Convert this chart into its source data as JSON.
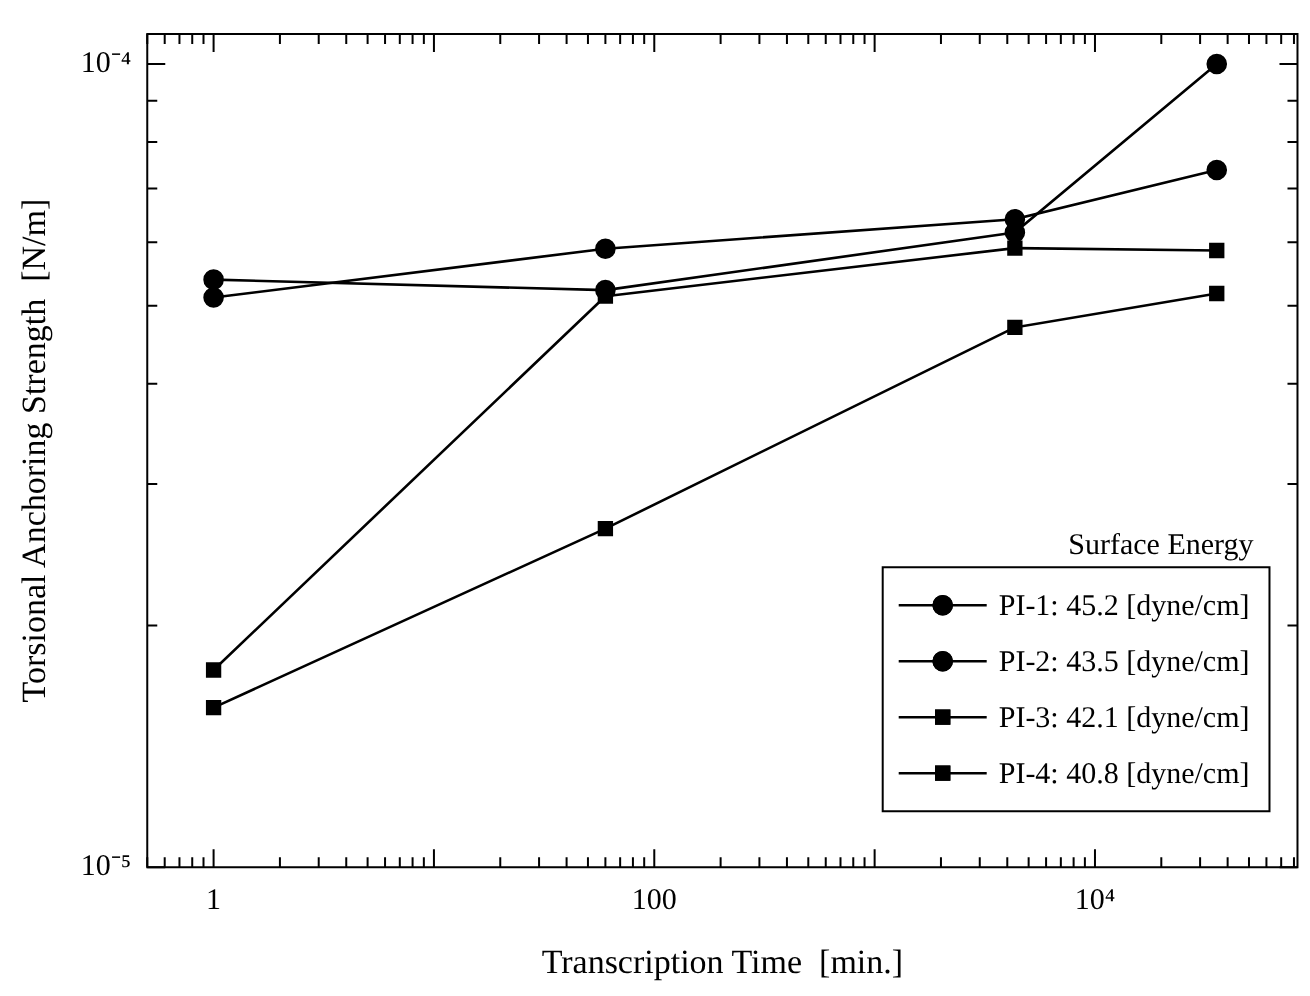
{
  "chart_data": {
    "type": "line",
    "xlabel": "Transcription Time  [min.]",
    "ylabel": "Torsional Anchoring Strength  [N/m]",
    "legend_title": "Surface Energy",
    "legend": "bottom right",
    "log": "xy",
    "grid": false,
    "line_style": "solid",
    "x": [
      1,
      60,
      4330,
      35700
    ],
    "xlim": [
      0.5,
      83000
    ],
    "ylim": [
      1e-05,
      0.000109
    ],
    "xticks": [
      {
        "value": 0.5,
        "label": null
      },
      {
        "value": 0.6,
        "label": null
      },
      {
        "value": 0.7,
        "label": null
      },
      {
        "value": 0.8,
        "label": null
      },
      {
        "value": 0.9,
        "label": null
      },
      1,
      {
        "value": 2,
        "label": null
      },
      {
        "value": 3,
        "label": null
      },
      {
        "value": 4,
        "label": null
      },
      {
        "value": 5,
        "label": null
      },
      {
        "value": 6,
        "label": null
      },
      {
        "value": 7,
        "label": null
      },
      {
        "value": 8,
        "label": null
      },
      {
        "value": 9,
        "label": null
      },
      {
        "value": 10,
        "label": null
      },
      {
        "value": 20,
        "label": null
      },
      {
        "value": 30,
        "label": null
      },
      {
        "value": 40,
        "label": null
      },
      {
        "value": 50,
        "label": null
      },
      {
        "value": 60,
        "label": null
      },
      {
        "value": 70,
        "label": null
      },
      {
        "value": 80,
        "label": null
      },
      {
        "value": 90,
        "label": null
      },
      100,
      {
        "value": 200,
        "label": null
      },
      {
        "value": 300,
        "label": null
      },
      {
        "value": 400,
        "label": null
      },
      {
        "value": 500,
        "label": null
      },
      {
        "value": 600,
        "label": null
      },
      {
        "value": 700,
        "label": null
      },
      {
        "value": 800,
        "label": null
      },
      {
        "value": 900,
        "label": null
      },
      {
        "value": 1000,
        "label": null
      },
      {
        "value": 2000,
        "label": null
      },
      {
        "value": 3000,
        "label": null
      },
      {
        "value": 4000,
        "label": null
      },
      {
        "value": 5000,
        "label": null
      },
      {
        "value": 6000,
        "label": null
      },
      {
        "value": 7000,
        "label": null
      },
      {
        "value": 8000,
        "label": null
      },
      {
        "value": 9000,
        "label": null
      },
      {
        "value": 10000,
        "label": "10⁴"
      },
      {
        "value": 20000,
        "label": null
      },
      {
        "value": 30000,
        "label": null
      },
      {
        "value": 40000,
        "label": null
      },
      {
        "value": 50000,
        "label": null
      },
      {
        "value": 60000,
        "label": null
      },
      {
        "value": 70000,
        "label": null
      },
      {
        "value": 80000,
        "label": null
      }
    ],
    "yticks": [
      {
        "value": 1e-05,
        "label": "10⁻⁵"
      },
      {
        "value": 2e-05,
        "label": null
      },
      {
        "value": 3e-05,
        "label": null
      },
      {
        "value": 4e-05,
        "label": null
      },
      {
        "value": 5e-05,
        "label": null
      },
      {
        "value": 6e-05,
        "label": null
      },
      {
        "value": 7e-05,
        "label": null
      },
      {
        "value": 8e-05,
        "label": null
      },
      {
        "value": 9e-05,
        "label": null
      },
      {
        "value": 0.0001,
        "label": "10⁻⁴"
      }
    ],
    "series": [
      {
        "name": "PI-1: 45.2 [dyne/cm]",
        "color": "#000000",
        "marker": "circle",
        "values": [
          5.39e-05,
          5.23e-05,
          6.17e-05,
          0.0001
        ]
      },
      {
        "name": "PI-2: 43.5 [dyne/cm]",
        "color": "#000000",
        "marker": "circle",
        "values": [
          5.12e-05,
          5.89e-05,
          6.41e-05,
          7.38e-05
        ]
      },
      {
        "name": "PI-3: 42.1 [dyne/cm]",
        "color": "#000000",
        "marker": "square",
        "values": [
          1.76e-05,
          5.14e-05,
          5.9e-05,
          5.86e-05
        ]
      },
      {
        "name": "PI-4: 40.8 [dyne/cm]",
        "color": "#000000",
        "marker": "square",
        "values": [
          1.58e-05,
          2.64e-05,
          4.7e-05,
          5.18e-05
        ]
      }
    ]
  }
}
